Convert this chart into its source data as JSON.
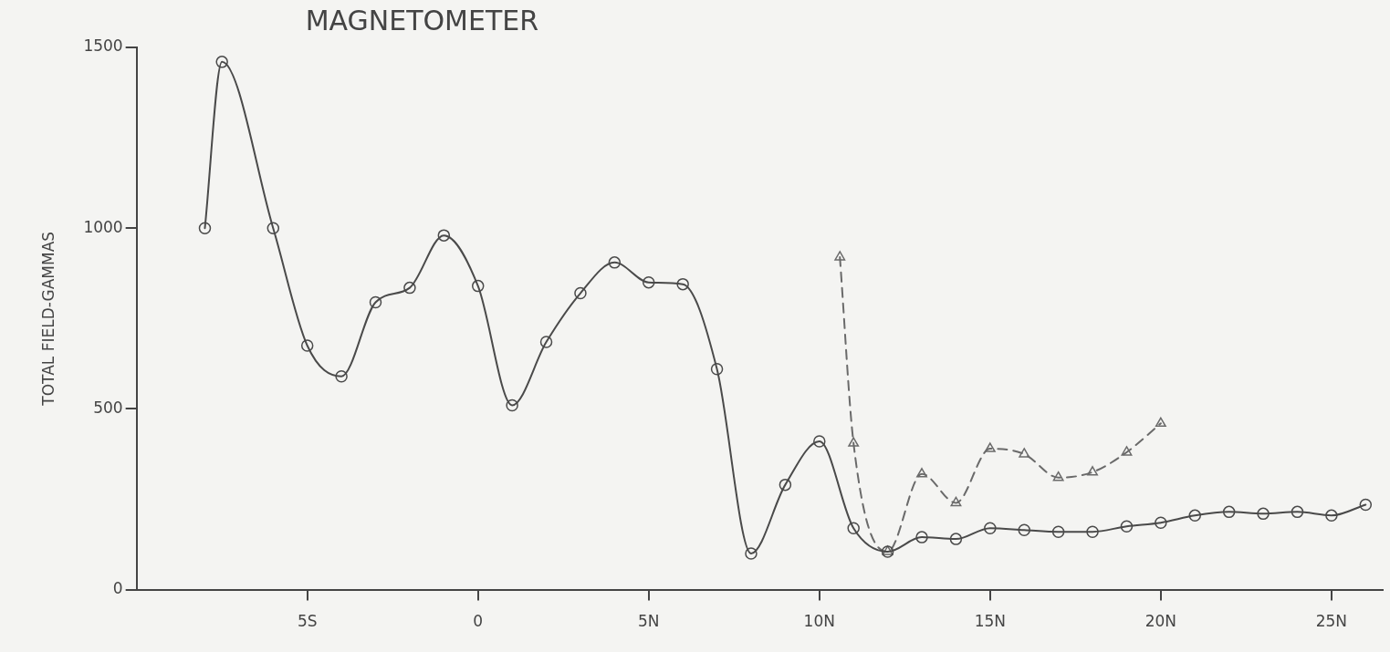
{
  "chart_data": {
    "type": "line",
    "title": "MAGNETOMETER",
    "ylabel": "TOTAL FIELD-GAMMAS",
    "xlim": [
      -10,
      26.5
    ],
    "xticks": [
      {
        "value": -5,
        "label": "5S"
      },
      0,
      {
        "value": 5,
        "label": "5N"
      },
      {
        "value": 10,
        "label": "10N"
      },
      {
        "value": 15,
        "label": "15N"
      },
      {
        "value": 20,
        "label": "20N"
      },
      {
        "value": 25,
        "label": "25N"
      }
    ],
    "ylim": [
      0,
      1500
    ],
    "yticks": [
      0,
      500,
      1000,
      1500
    ],
    "legend": false,
    "series": [
      {
        "color": "#4a4a4a",
        "marker": "circle",
        "line_style": "solid",
        "x": [
          -8,
          -7.5,
          -6,
          -5,
          -4,
          -3,
          -2,
          -1,
          0,
          1,
          2,
          3,
          4,
          5,
          6,
          7,
          8,
          9,
          10,
          11,
          12,
          13,
          14,
          15,
          16,
          17,
          18,
          19,
          20,
          21,
          22,
          23,
          24,
          25,
          26
        ],
        "values": [
          1000,
          1460,
          1000,
          675,
          590,
          795,
          835,
          980,
          840,
          510,
          685,
          820,
          905,
          850,
          845,
          610,
          100,
          290,
          410,
          170,
          105,
          145,
          140,
          170,
          165,
          160,
          160,
          175,
          185,
          205,
          215,
          210,
          215,
          205,
          235
        ]
      },
      {
        "color": "#6a6a6a",
        "marker": "triangle",
        "line_style": "dashed",
        "x": [
          10.6,
          11,
          12,
          13,
          14,
          15,
          16,
          17,
          18,
          19,
          20
        ],
        "values": [
          920,
          405,
          105,
          320,
          240,
          390,
          375,
          310,
          325,
          380,
          460
        ]
      }
    ]
  }
}
